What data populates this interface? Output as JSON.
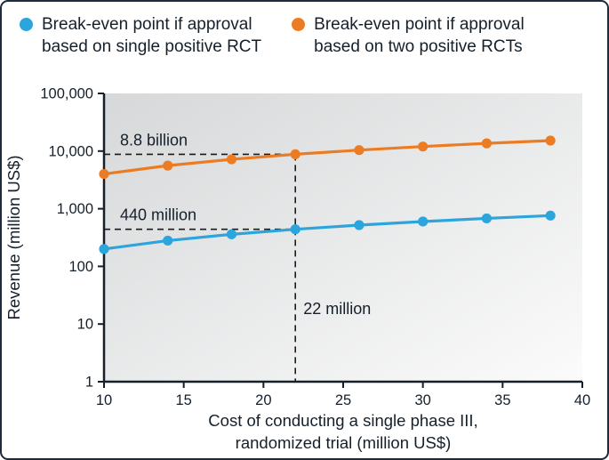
{
  "figure": {
    "border_color": "#1d2c3c",
    "background": "#ffffff"
  },
  "legend": {
    "items": [
      {
        "id": "single-rct",
        "label": "Break-even point if approval\nbased on single positive RCT",
        "color": "#2ba5dc"
      },
      {
        "id": "two-rcts",
        "label": "Break-even point if approval\nbased on two positive RCTs",
        "color": "#ec7c23"
      }
    ]
  },
  "chart_data": {
    "type": "line",
    "title": "",
    "xlabel_lines": [
      "Cost of conducting a single phase III,",
      "randomized trial (million US$)"
    ],
    "ylabel": "Revenue (million US$)",
    "x": [
      10,
      14,
      18,
      22,
      26,
      30,
      34,
      38
    ],
    "series": [
      {
        "name": "Break-even point if approval based on single positive RCT",
        "color": "#2ba5dc",
        "values": [
          200,
          280,
          360,
          440,
          520,
          600,
          680,
          760
        ]
      },
      {
        "name": "Break-even point if approval based on two positive RCTs",
        "color": "#ec7c23",
        "values": [
          4000,
          5600,
          7200,
          8800,
          10400,
          12000,
          13600,
          15200
        ]
      }
    ],
    "xlim": [
      10,
      40
    ],
    "x_ticks": [
      10,
      15,
      20,
      25,
      30,
      35,
      40
    ],
    "y_scale": "log",
    "ylim": [
      1,
      100000
    ],
    "y_ticks": [
      {
        "value": 1,
        "label": "1"
      },
      {
        "value": 10,
        "label": "10"
      },
      {
        "value": 100,
        "label": "100"
      },
      {
        "value": 1000,
        "label": "1,000"
      },
      {
        "value": 10000,
        "label": "10,000"
      },
      {
        "value": 100000,
        "label": "100,000"
      }
    ],
    "grid": false,
    "legend_position": "top",
    "plot_background": {
      "from": "#d6d8d9",
      "to": "#fbfbfb"
    },
    "axis_color": "#15202b",
    "text_color": "#15202b",
    "annotations": {
      "dash_color": "#1a1a1a",
      "horizontal": [
        {
          "label": "8.8 billion",
          "y": 8800,
          "x_from": 10,
          "x_to": 22
        },
        {
          "label": "440 million",
          "y": 440,
          "x_from": 10,
          "x_to": 22
        }
      ],
      "vertical": [
        {
          "label": "22 million",
          "x": 22,
          "y_from": 1,
          "y_to": 8800
        }
      ]
    }
  }
}
